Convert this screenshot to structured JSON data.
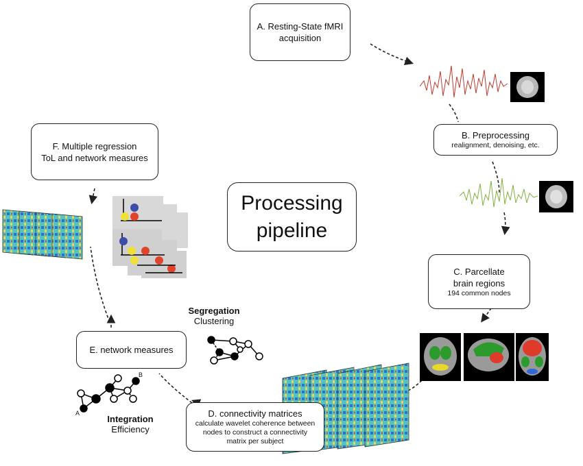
{
  "center": {
    "line1": "Processing",
    "line2": "pipeline"
  },
  "steps": {
    "a": {
      "title": "A. Resting-State fMRI",
      "title2": "acquisition"
    },
    "b": {
      "title": "B. Preprocessing",
      "sub": "realignment, denoising,  etc."
    },
    "c": {
      "title": "C. Parcellate",
      "title2": "brain regions",
      "sub": "194 common nodes"
    },
    "d": {
      "title": "D. connectivity matrices",
      "sub1": "calculate wavelet coherence between",
      "sub2": "nodes to construct a connectivity",
      "sub3": "matrix per subject"
    },
    "e": {
      "title": "E. network measures"
    },
    "f": {
      "title": "F. Multiple regression",
      "title2": "ToL and network measures"
    }
  },
  "segregation": {
    "heading": "Segregation",
    "sub": "Clustering"
  },
  "integration": {
    "heading": "Integration",
    "sub": "Efficiency",
    "node_a": "A",
    "node_b": "B"
  },
  "colors": {
    "raw_signal": "#c0392b",
    "clean_signal": "#7fb13a",
    "arrow": "#222222"
  }
}
